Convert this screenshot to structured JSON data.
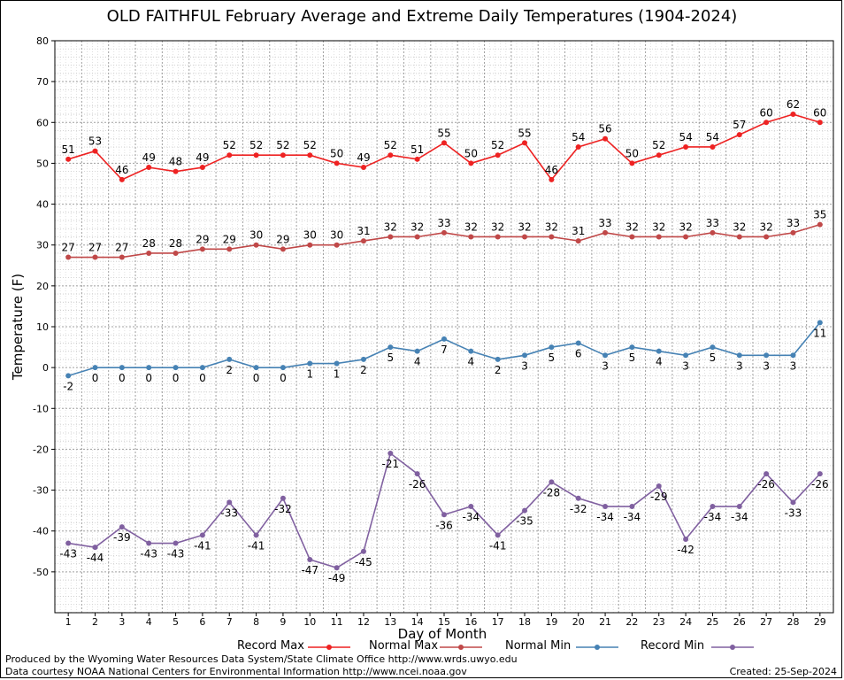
{
  "title": "OLD FAITHFUL February Average and Extreme Daily Temperatures (1904-2024)",
  "footer": {
    "line1": "Produced by the Wyoming Water Resources Data System/State Climate Office http://www.wrds.uwyo.edu",
    "line2": "Data courtesy NOAA National Centers for Environmental Information http://www.ncei.noaa.gov",
    "created": "Created: 25-Sep-2024"
  },
  "chart_data": {
    "type": "line",
    "title": "OLD FAITHFUL February Average and Extreme Daily Temperatures (1904-2024)",
    "xlabel": "Day of Month",
    "ylabel": "Temperature (F)",
    "xlim": [
      1,
      29
    ],
    "ylim": [
      -60,
      80
    ],
    "yticks": [
      -50,
      -40,
      -30,
      -20,
      -10,
      0,
      10,
      20,
      30,
      40,
      50,
      60,
      70,
      80
    ],
    "x": [
      1,
      2,
      3,
      4,
      5,
      6,
      7,
      8,
      9,
      10,
      11,
      12,
      13,
      14,
      15,
      16,
      17,
      18,
      19,
      20,
      21,
      22,
      23,
      24,
      25,
      26,
      27,
      28,
      29
    ],
    "grid": true,
    "legend_position": "bottom",
    "series": [
      {
        "name": "Record Max",
        "color": "#ee2222",
        "values": [
          51,
          53,
          46,
          49,
          48,
          49,
          52,
          52,
          52,
          52,
          50,
          49,
          52,
          51,
          55,
          50,
          52,
          55,
          46,
          54,
          56,
          50,
          52,
          54,
          54,
          57,
          60,
          62,
          60
        ],
        "label_pos": "above"
      },
      {
        "name": "Normal Max",
        "color": "#c04848",
        "values": [
          27,
          27,
          27,
          28,
          28,
          29,
          29,
          30,
          29,
          30,
          30,
          31,
          32,
          32,
          33,
          32,
          32,
          32,
          32,
          31,
          33,
          32,
          32,
          32,
          33,
          32,
          32,
          33,
          35
        ],
        "label_pos": "above"
      },
      {
        "name": "Normal Min",
        "color": "#4682b4",
        "values": [
          -2,
          0,
          0,
          0,
          0,
          0,
          2,
          0,
          0,
          1,
          1,
          2,
          5,
          4,
          7,
          4,
          2,
          3,
          5,
          6,
          3,
          5,
          4,
          3,
          5,
          3,
          3,
          3,
          11
        ],
        "label_pos": "below"
      },
      {
        "name": "Record Min",
        "color": "#8060a0",
        "values": [
          -43,
          -44,
          -39,
          -43,
          -43,
          -41,
          -33,
          -41,
          -32,
          -47,
          -49,
          -45,
          -21,
          -26,
          -36,
          -34,
          -41,
          -35,
          -28,
          -32,
          -34,
          -34,
          -29,
          -42,
          -34,
          -34,
          -26,
          -33,
          -26
        ],
        "label_pos": "below"
      }
    ]
  }
}
